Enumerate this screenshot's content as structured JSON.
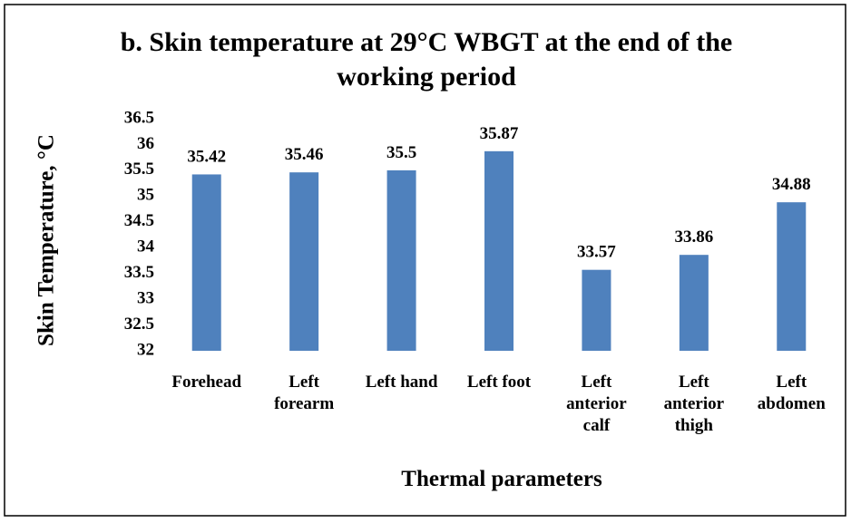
{
  "chart_data": {
    "type": "bar",
    "title": "b. Skin temperature at 29°C WBGT at the end of the working period",
    "x_label": "Thermal parameters",
    "y_label": "Skin Temperature, °C",
    "categories": [
      "Forehead",
      "Left forearm",
      "Left hand",
      "Left foot",
      "Left anterior calf",
      "Left anterior thigh",
      "Left abdomen"
    ],
    "values": [
      35.42,
      35.46,
      35.5,
      35.87,
      33.57,
      33.86,
      34.88
    ],
    "color": "#4f81bd",
    "ylim": [
      32,
      36.5
    ],
    "yticks": [
      32,
      32.5,
      33,
      33.5,
      34,
      34.5,
      35,
      35.5,
      36,
      36.5
    ],
    "grid": false
  }
}
